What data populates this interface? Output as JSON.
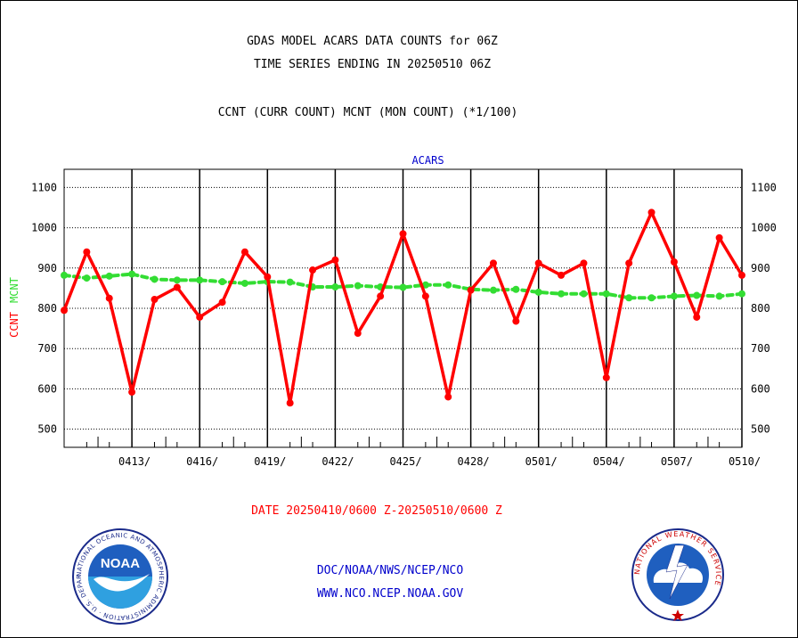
{
  "header": {
    "title_line1": "GDAS MODEL ACARS DATA COUNTS for 06Z",
    "title_line2": "TIME SERIES ENDING IN 20250510 06Z",
    "subtitle": "CCNT (CURR COUNT) MCNT (MON COUNT) (*1/100)"
  },
  "footer": {
    "date_range": "DATE 20250410/0600 Z-20250510/0600 Z",
    "org_path": "DOC/NOAA/NWS/NCEP/NCO",
    "website": "WWW.NCO.NCEP.NOAA.GOV"
  },
  "logos": {
    "noaa_text": "NOAA",
    "noaa_ring": "NATIONAL OCEANIC AND ATMOSPHERIC ADMINISTRATION · U.S. DEPARTMENT OF COMMERCE ·",
    "nws_ring": "NATIONAL WEATHER SERVICE"
  },
  "colors": {
    "ccnt": "#ff0000",
    "mcnt": "#33dd33",
    "panel_title": "#0000cc",
    "footer_text": "#0000cc",
    "date_text": "#ff0000"
  },
  "chart_data": {
    "type": "line",
    "panel_title": "ACARS",
    "ylabel_ccnt": "CCNT",
    "ylabel_mcnt": "MCNT",
    "ylim": [
      455,
      1145
    ],
    "y_ticks": [
      500,
      600,
      700,
      800,
      900,
      1000,
      1100
    ],
    "x_tick_labels": [
      "0413/",
      "0416/",
      "0419/",
      "0422/",
      "0425/",
      "0428/",
      "0501/",
      "0504/",
      "0507/",
      "0510/"
    ],
    "x_tick_days": [
      3,
      6,
      9,
      12,
      15,
      18,
      21,
      24,
      27,
      30
    ],
    "x_days": [
      0,
      1,
      2,
      3,
      4,
      5,
      6,
      7,
      8,
      9,
      10,
      11,
      12,
      13,
      14,
      15,
      16,
      17,
      18,
      19,
      20,
      21,
      22,
      23,
      24,
      25,
      26,
      27,
      28,
      29,
      30
    ],
    "grid": true,
    "series": [
      {
        "name": "CCNT",
        "values": [
          795,
          940,
          825,
          592,
          822,
          852,
          778,
          815,
          940,
          878,
          565,
          895,
          920,
          738,
          830,
          985,
          830,
          580,
          845,
          912,
          768,
          912,
          882,
          912,
          628,
          912,
          1038,
          915,
          778,
          975,
          882
        ]
      },
      {
        "name": "MCNT",
        "values": [
          882,
          875,
          880,
          885,
          872,
          870,
          870,
          866,
          862,
          866,
          865,
          853,
          853,
          856,
          853,
          852,
          858,
          858,
          847,
          845,
          847,
          840,
          836,
          836,
          836,
          826,
          826,
          830,
          832,
          830,
          836
        ]
      }
    ]
  }
}
